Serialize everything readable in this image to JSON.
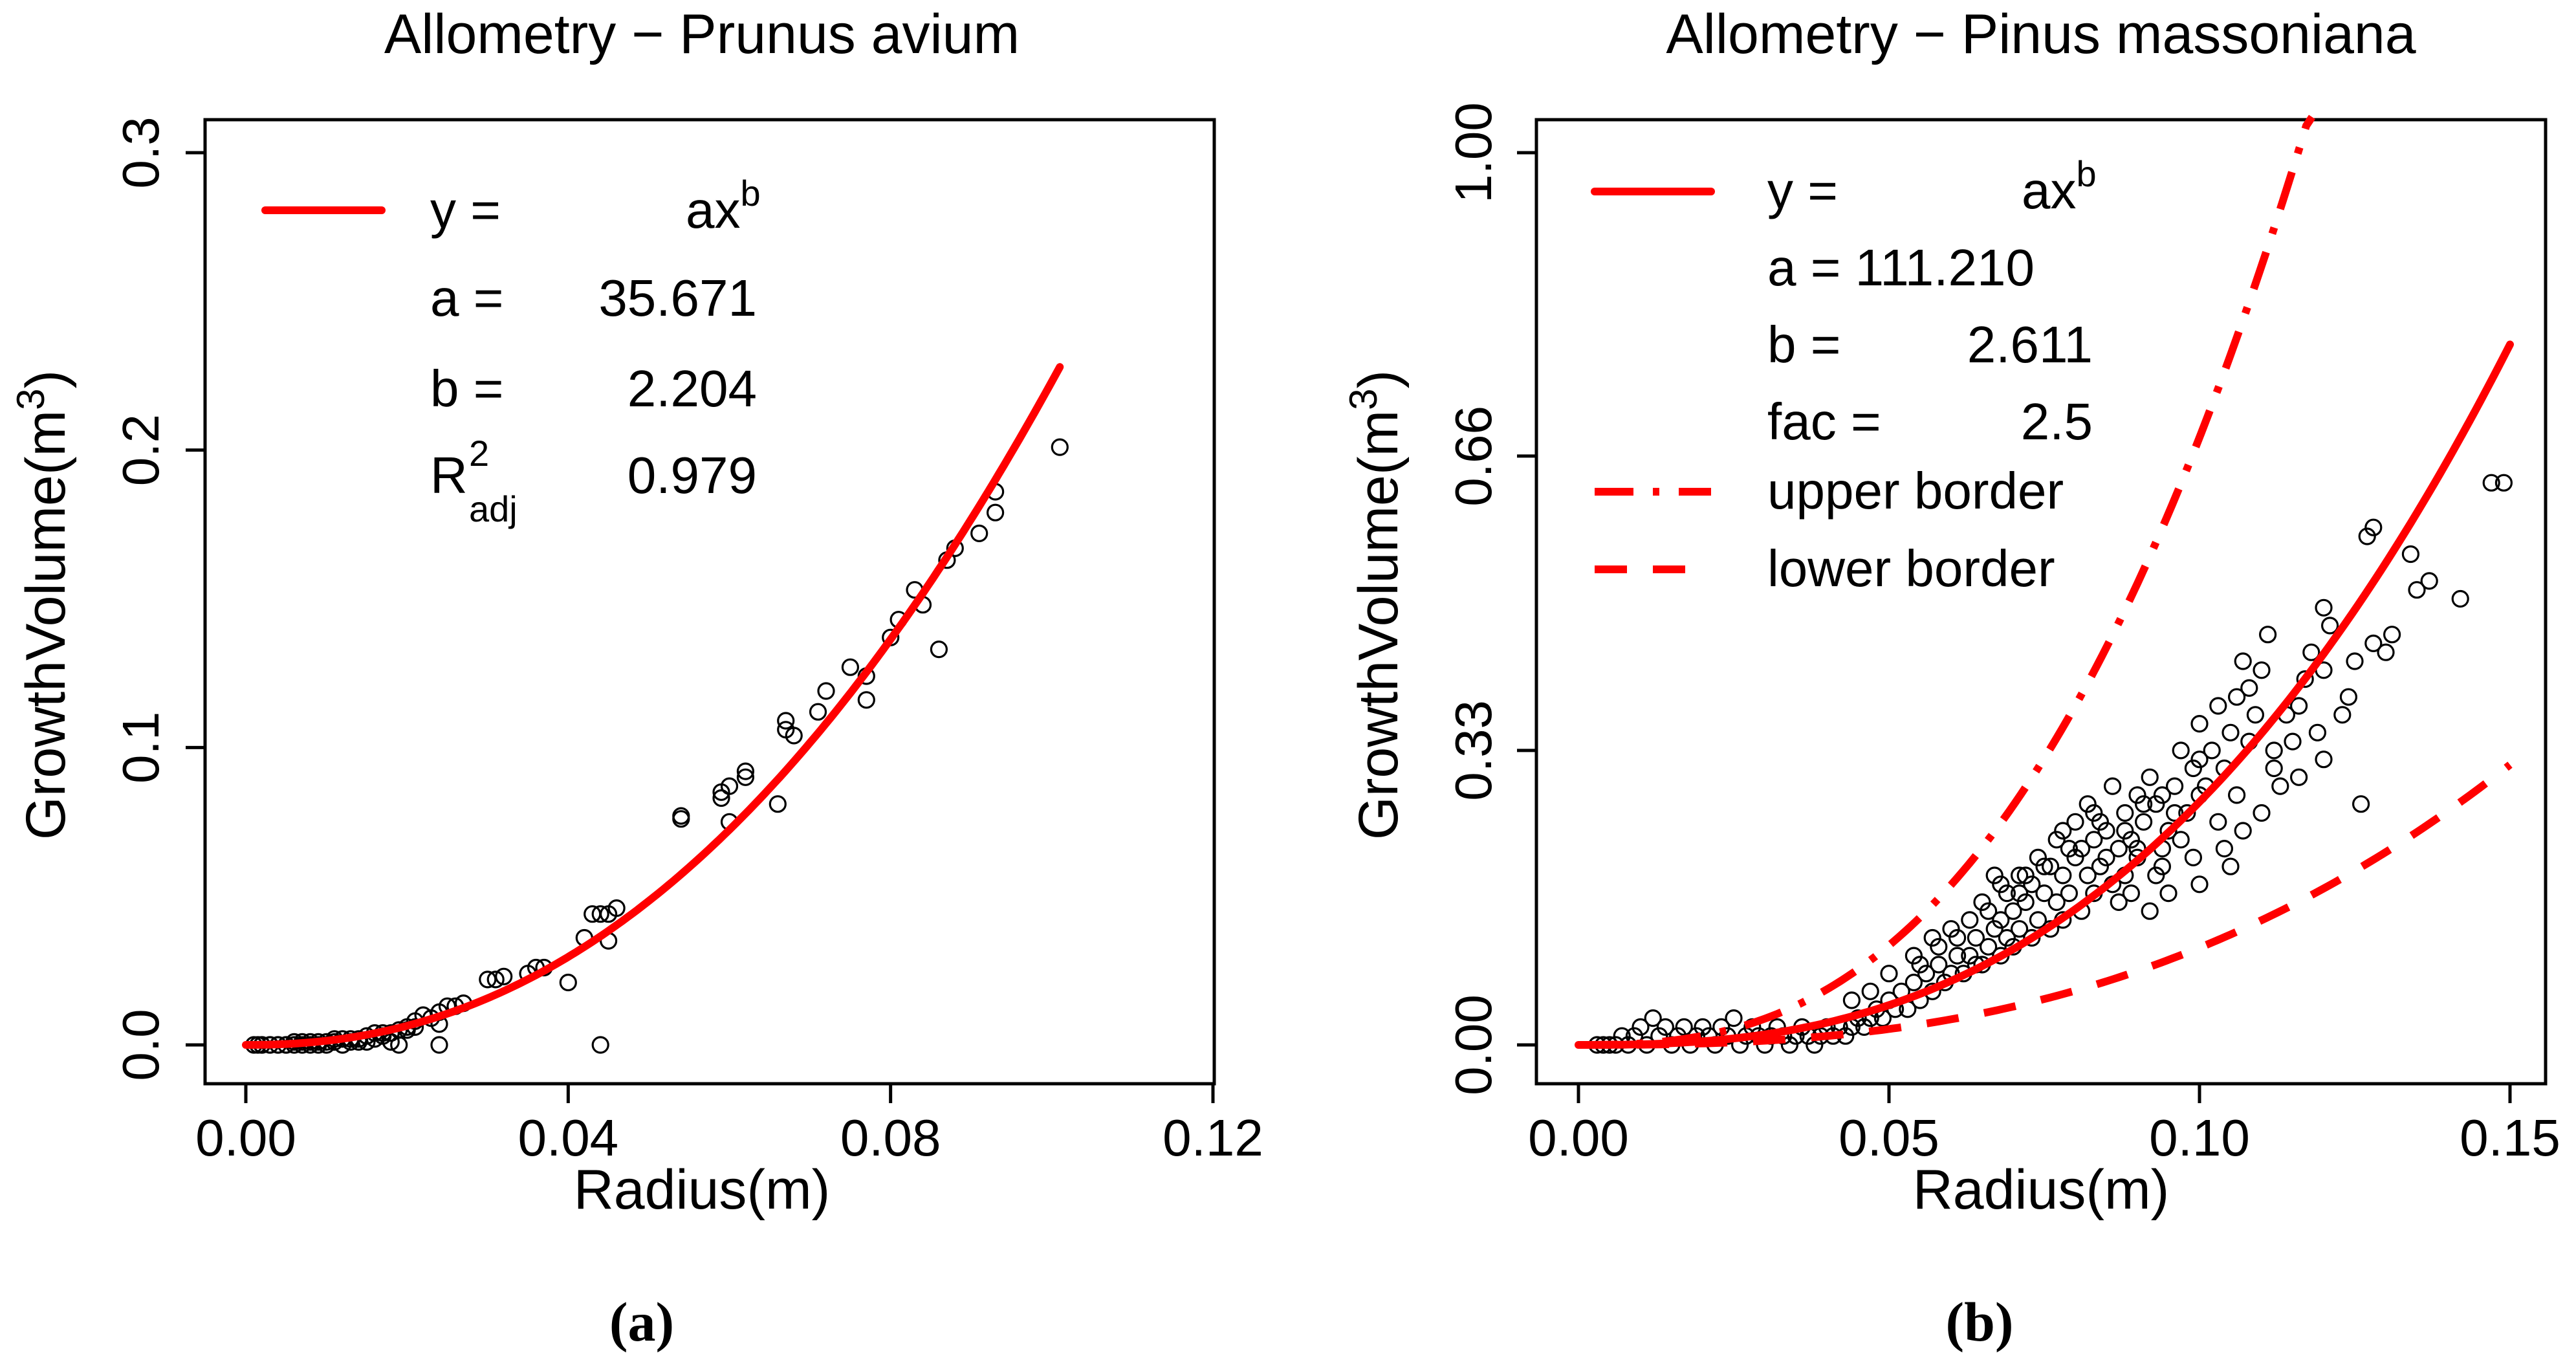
{
  "colors": {
    "fit": "#ff0000",
    "points": "#000000"
  },
  "chart_data": [
    {
      "type": "scatter",
      "panel_label": "a",
      "title": "Allometry − Prunus avium",
      "xlabel": "Radius(m)",
      "ylabel_base": "GrowthVolume(m",
      "ylabel_sup": "3",
      "ylabel_close": ")",
      "xlim": [
        0,
        0.12
      ],
      "ylim": [
        0,
        0.3
      ],
      "xticks": [
        0,
        0.04,
        0.08,
        0.12
      ],
      "xtick_labels": [
        "0.00",
        "0.04",
        "0.08",
        "0.12"
      ],
      "yticks": [
        0,
        0.1,
        0.2,
        0.3
      ],
      "ytick_labels": [
        "0.0",
        "0.1",
        "0.2",
        "0.3"
      ],
      "fit": {
        "a": 35.671,
        "b": 2.204,
        "x_end": 0.101
      },
      "legend": {
        "line1_lhs": "y =",
        "line1_rhs": "ax",
        "line1_sup": "b",
        "line2_lhs": "a =",
        "line2_rhs": "35.671",
        "line3_lhs": "b =",
        "line3_rhs": "2.204",
        "line4_lhs": "R",
        "line4_sup": "2",
        "line4_sub": "adj",
        "line4_rhs": "0.979"
      },
      "points": [
        [
          0.101,
          0.201
        ],
        [
          0.093,
          0.186
        ],
        [
          0.093,
          0.179
        ],
        [
          0.091,
          0.172
        ],
        [
          0.088,
          0.167
        ],
        [
          0.087,
          0.163
        ],
        [
          0.086,
          0.133
        ],
        [
          0.084,
          0.148
        ],
        [
          0.083,
          0.153
        ],
        [
          0.081,
          0.143
        ],
        [
          0.08,
          0.137
        ],
        [
          0.077,
          0.124
        ],
        [
          0.077,
          0.116
        ],
        [
          0.075,
          0.127
        ],
        [
          0.072,
          0.119
        ],
        [
          0.071,
          0.112
        ],
        [
          0.067,
          0.109
        ],
        [
          0.067,
          0.106
        ],
        [
          0.068,
          0.104
        ],
        [
          0.066,
          0.081
        ],
        [
          0.062,
          0.092
        ],
        [
          0.062,
          0.09
        ],
        [
          0.06,
          0.087
        ],
        [
          0.059,
          0.083
        ],
        [
          0.059,
          0.085
        ],
        [
          0.06,
          0.075
        ],
        [
          0.054,
          0.077
        ],
        [
          0.054,
          0.076
        ],
        [
          0.046,
          0.046
        ],
        [
          0.045,
          0.044
        ],
        [
          0.044,
          0.044
        ],
        [
          0.045,
          0.035
        ],
        [
          0.043,
          0.044
        ],
        [
          0.042,
          0.036
        ],
        [
          0.04,
          0.021
        ],
        [
          0.044,
          0.0
        ],
        [
          0.037,
          0.026
        ],
        [
          0.036,
          0.026
        ],
        [
          0.035,
          0.024
        ],
        [
          0.032,
          0.023
        ],
        [
          0.031,
          0.022
        ],
        [
          0.03,
          0.022
        ],
        [
          0.027,
          0.014
        ],
        [
          0.026,
          0.013
        ],
        [
          0.025,
          0.013
        ],
        [
          0.024,
          0.011
        ],
        [
          0.024,
          0.007
        ],
        [
          0.023,
          0.009
        ],
        [
          0.022,
          0.01
        ],
        [
          0.024,
          0.0
        ],
        [
          0.021,
          0.006
        ],
        [
          0.021,
          0.008
        ],
        [
          0.02,
          0.005
        ],
        [
          0.02,
          0.006
        ],
        [
          0.019,
          0.005
        ],
        [
          0.018,
          0.004
        ],
        [
          0.019,
          0.0
        ],
        [
          0.018,
          0.001
        ],
        [
          0.017,
          0.004
        ],
        [
          0.017,
          0.003
        ],
        [
          0.016,
          0.002
        ],
        [
          0.016,
          0.004
        ],
        [
          0.015,
          0.001
        ],
        [
          0.015,
          0.003
        ],
        [
          0.014,
          0.002
        ],
        [
          0.014,
          0.001
        ],
        [
          0.013,
          0.002
        ],
        [
          0.013,
          0.001
        ],
        [
          0.012,
          0.002
        ],
        [
          0.012,
          0.0
        ],
        [
          0.011,
          0.001
        ],
        [
          0.011,
          0.002
        ],
        [
          0.01,
          0.001
        ],
        [
          0.01,
          0.0
        ],
        [
          0.009,
          0.001
        ],
        [
          0.009,
          0.0
        ],
        [
          0.008,
          0.001
        ],
        [
          0.008,
          0.0
        ],
        [
          0.007,
          0.0
        ],
        [
          0.007,
          0.001
        ],
        [
          0.006,
          0.0
        ],
        [
          0.006,
          0.001
        ],
        [
          0.005,
          0.0
        ],
        [
          0.005,
          0.0
        ],
        [
          0.004,
          0.0
        ],
        [
          0.004,
          0.0
        ],
        [
          0.003,
          0.0
        ],
        [
          0.003,
          0.0
        ],
        [
          0.002,
          0.0
        ],
        [
          0.002,
          0.0
        ],
        [
          0.001,
          0.0
        ],
        [
          0.0015,
          0.0
        ]
      ]
    },
    {
      "type": "scatter",
      "panel_label": "b",
      "title": "Allometry − Pinus massoniana",
      "xlabel": "Radius(m)",
      "ylabel_base": "GrowthVolume(m",
      "ylabel_sup": "3",
      "ylabel_close": ")",
      "xlim": [
        0,
        0.15
      ],
      "ylim": [
        0,
        1.0
      ],
      "xticks": [
        0,
        0.05,
        0.1,
        0.15
      ],
      "xtick_labels": [
        "0.00",
        "0.05",
        "0.10",
        "0.15"
      ],
      "yticks": [
        0,
        0.33,
        0.66,
        1.0
      ],
      "ytick_labels": [
        "0.00",
        "0.33",
        "0.66",
        "1.00"
      ],
      "fit": {
        "a": 111.21,
        "b": 2.611,
        "fac": 2.5,
        "x_end": 0.15
      },
      "legend": {
        "line1_lhs": "y =",
        "line1_rhs": "ax",
        "line1_sup": "b",
        "line2_text": "a = 111.210",
        "line3_lhs": "b =",
        "line3_rhs": "2.611",
        "line4_lhs": "fac =",
        "line4_rhs": "2.5",
        "upper_label": "upper border",
        "lower_label": "lower border"
      },
      "points": [
        [
          0.149,
          0.63
        ],
        [
          0.147,
          0.63
        ],
        [
          0.142,
          0.5
        ],
        [
          0.135,
          0.51
        ],
        [
          0.134,
          0.55
        ],
        [
          0.131,
          0.46
        ],
        [
          0.128,
          0.45
        ],
        [
          0.128,
          0.58
        ],
        [
          0.127,
          0.57
        ],
        [
          0.125,
          0.43
        ],
        [
          0.124,
          0.39
        ],
        [
          0.123,
          0.37
        ],
        [
          0.12,
          0.49
        ],
        [
          0.12,
          0.42
        ],
        [
          0.118,
          0.44
        ],
        [
          0.117,
          0.41
        ],
        [
          0.116,
          0.38
        ],
        [
          0.115,
          0.34
        ],
        [
          0.114,
          0.37
        ],
        [
          0.112,
          0.33
        ],
        [
          0.111,
          0.46
        ],
        [
          0.11,
          0.42
        ],
        [
          0.109,
          0.37
        ],
        [
          0.108,
          0.34
        ],
        [
          0.107,
          0.43
        ],
        [
          0.106,
          0.39
        ],
        [
          0.105,
          0.35
        ],
        [
          0.104,
          0.31
        ],
        [
          0.103,
          0.38
        ],
        [
          0.102,
          0.33
        ],
        [
          0.101,
          0.29
        ],
        [
          0.1,
          0.36
        ],
        [
          0.1,
          0.28
        ],
        [
          0.099,
          0.31
        ],
        [
          0.098,
          0.26
        ],
        [
          0.097,
          0.33
        ],
        [
          0.096,
          0.29
        ],
        [
          0.095,
          0.24
        ],
        [
          0.094,
          0.28
        ],
        [
          0.094,
          0.22
        ],
        [
          0.093,
          0.27
        ],
        [
          0.092,
          0.3
        ],
        [
          0.091,
          0.25
        ],
        [
          0.09,
          0.21
        ],
        [
          0.09,
          0.28
        ],
        [
          0.089,
          0.23
        ],
        [
          0.088,
          0.19
        ],
        [
          0.088,
          0.26
        ],
        [
          0.087,
          0.22
        ],
        [
          0.086,
          0.18
        ],
        [
          0.085,
          0.24
        ],
        [
          0.084,
          0.2
        ],
        [
          0.083,
          0.17
        ],
        [
          0.083,
          0.23
        ],
        [
          0.082,
          0.19
        ],
        [
          0.081,
          0.15
        ],
        [
          0.08,
          0.21
        ],
        [
          0.079,
          0.17
        ],
        [
          0.078,
          0.14
        ],
        [
          0.078,
          0.19
        ],
        [
          0.077,
          0.16
        ],
        [
          0.076,
          0.13
        ],
        [
          0.075,
          0.17
        ],
        [
          0.074,
          0.14
        ],
        [
          0.073,
          0.12
        ],
        [
          0.072,
          0.16
        ],
        [
          0.071,
          0.13
        ],
        [
          0.07,
          0.11
        ],
        [
          0.07,
          0.15
        ],
        [
          0.069,
          0.12
        ],
        [
          0.068,
          0.1
        ],
        [
          0.067,
          0.13
        ],
        [
          0.066,
          0.11
        ],
        [
          0.065,
          0.09
        ],
        [
          0.064,
          0.12
        ],
        [
          0.063,
          0.1
        ],
        [
          0.062,
          0.08
        ],
        [
          0.061,
          0.1
        ],
        [
          0.06,
          0.08
        ],
        [
          0.059,
          0.07
        ],
        [
          0.058,
          0.09
        ],
        [
          0.057,
          0.06
        ],
        [
          0.056,
          0.08
        ],
        [
          0.055,
          0.05
        ],
        [
          0.054,
          0.07
        ],
        [
          0.053,
          0.04
        ],
        [
          0.052,
          0.06
        ],
        [
          0.051,
          0.04
        ],
        [
          0.05,
          0.05
        ],
        [
          0.049,
          0.03
        ],
        [
          0.048,
          0.04
        ],
        [
          0.047,
          0.03
        ],
        [
          0.046,
          0.02
        ],
        [
          0.045,
          0.03
        ],
        [
          0.044,
          0.02
        ],
        [
          0.043,
          0.01
        ],
        [
          0.042,
          0.02
        ],
        [
          0.041,
          0.01
        ],
        [
          0.04,
          0.02
        ],
        [
          0.039,
          0.01
        ],
        [
          0.038,
          0.0
        ],
        [
          0.037,
          0.01
        ],
        [
          0.036,
          0.02
        ],
        [
          0.035,
          0.01
        ],
        [
          0.034,
          0.0
        ],
        [
          0.033,
          0.01
        ],
        [
          0.032,
          0.02
        ],
        [
          0.031,
          0.01
        ],
        [
          0.03,
          0.0
        ],
        [
          0.029,
          0.01
        ],
        [
          0.028,
          0.02
        ],
        [
          0.027,
          0.01
        ],
        [
          0.026,
          0.0
        ],
        [
          0.025,
          0.03
        ],
        [
          0.024,
          0.01
        ],
        [
          0.023,
          0.02
        ],
        [
          0.022,
          0.0
        ],
        [
          0.021,
          0.01
        ],
        [
          0.02,
          0.02
        ],
        [
          0.019,
          0.01
        ],
        [
          0.018,
          0.0
        ],
        [
          0.017,
          0.02
        ],
        [
          0.016,
          0.01
        ],
        [
          0.015,
          0.0
        ],
        [
          0.014,
          0.02
        ],
        [
          0.013,
          0.01
        ],
        [
          0.012,
          0.03
        ],
        [
          0.011,
          0.0
        ],
        [
          0.01,
          0.02
        ],
        [
          0.009,
          0.01
        ],
        [
          0.008,
          0.0
        ],
        [
          0.007,
          0.01
        ],
        [
          0.006,
          0.0
        ],
        [
          0.005,
          0.0
        ],
        [
          0.004,
          0.0
        ],
        [
          0.003,
          0.0
        ],
        [
          0.137,
          0.52
        ],
        [
          0.13,
          0.44
        ],
        [
          0.121,
          0.47
        ],
        [
          0.113,
          0.29
        ],
        [
          0.108,
          0.4
        ],
        [
          0.106,
          0.28
        ],
        [
          0.103,
          0.25
        ],
        [
          0.1,
          0.32
        ],
        [
          0.097,
          0.23
        ],
        [
          0.094,
          0.2
        ],
        [
          0.091,
          0.27
        ],
        [
          0.088,
          0.24
        ],
        [
          0.085,
          0.21
        ],
        [
          0.082,
          0.27
        ],
        [
          0.079,
          0.22
        ],
        [
          0.076,
          0.2
        ],
        [
          0.073,
          0.18
        ],
        [
          0.071,
          0.17
        ],
        [
          0.068,
          0.14
        ],
        [
          0.066,
          0.15
        ],
        [
          0.064,
          0.09
        ],
        [
          0.061,
          0.12
        ],
        [
          0.058,
          0.11
        ],
        [
          0.055,
          0.09
        ],
        [
          0.12,
          0.32
        ],
        [
          0.116,
          0.3
        ],
        [
          0.11,
          0.26
        ],
        [
          0.105,
          0.2
        ],
        [
          0.1,
          0.18
        ],
        [
          0.095,
          0.17
        ],
        [
          0.092,
          0.15
        ],
        [
          0.089,
          0.17
        ],
        [
          0.087,
          0.16
        ],
        [
          0.084,
          0.25
        ],
        [
          0.081,
          0.22
        ],
        [
          0.078,
          0.24
        ],
        [
          0.075,
          0.2
        ],
        [
          0.072,
          0.19
        ],
        [
          0.069,
          0.17
        ],
        [
          0.067,
          0.19
        ],
        [
          0.126,
          0.27
        ],
        [
          0.119,
          0.35
        ],
        [
          0.112,
          0.31
        ],
        [
          0.107,
          0.24
        ],
        [
          0.104,
          0.22
        ],
        [
          0.099,
          0.21
        ],
        [
          0.096,
          0.26
        ],
        [
          0.093,
          0.19
        ],
        [
          0.09,
          0.22
        ],
        [
          0.086,
          0.29
        ],
        [
          0.083,
          0.26
        ],
        [
          0.08,
          0.25
        ],
        [
          0.077,
          0.23
        ],
        [
          0.074,
          0.21
        ],
        [
          0.071,
          0.19
        ],
        [
          0.068,
          0.18
        ],
        [
          0.065,
          0.16
        ],
        [
          0.063,
          0.14
        ],
        [
          0.06,
          0.13
        ],
        [
          0.057,
          0.12
        ],
        [
          0.054,
          0.1
        ],
        [
          0.05,
          0.08
        ],
        [
          0.047,
          0.06
        ],
        [
          0.044,
          0.05
        ]
      ]
    }
  ],
  "captions": [
    "(a)",
    "(b)"
  ]
}
